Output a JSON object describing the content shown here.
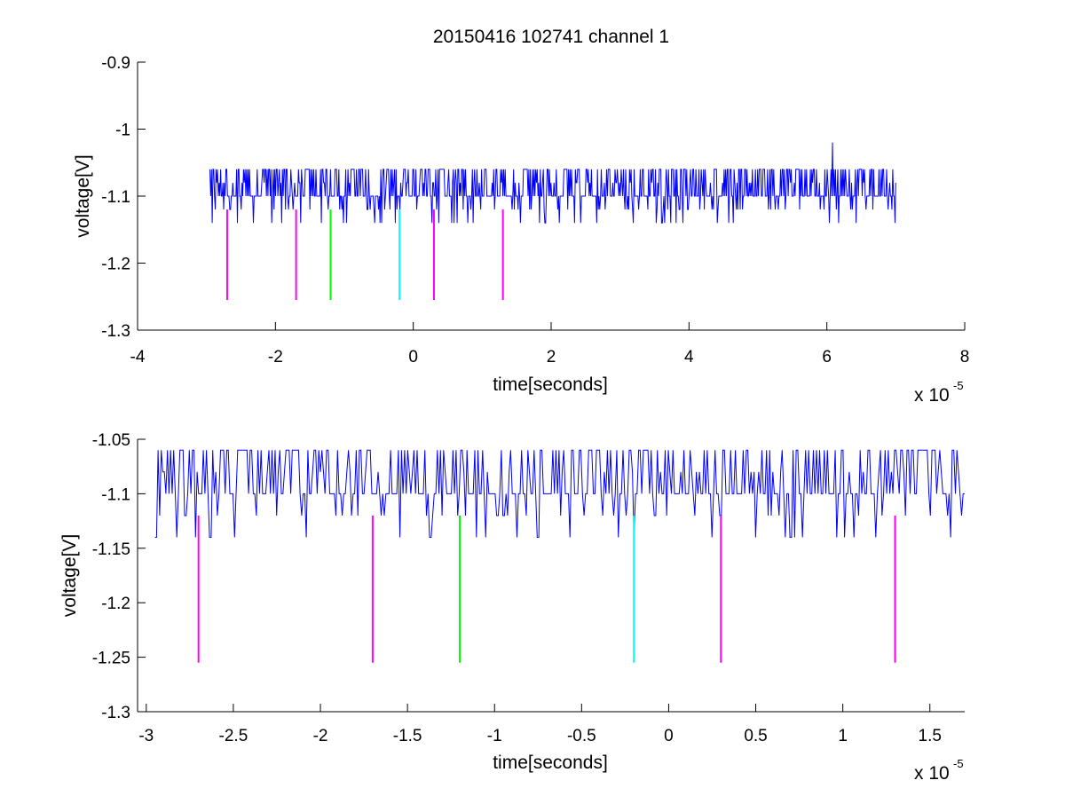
{
  "title": "20150416 102741 channel 1",
  "colors": {
    "signal": "#0000ff",
    "magenta": "#ff00ff",
    "green": "#00ff00",
    "cyan": "#00ffff",
    "axis": "#000000",
    "background": "#ffffff"
  },
  "chart_data": [
    {
      "type": "line",
      "title": "20150416 102741 channel 1",
      "xlabel": "time[seconds]",
      "ylabel": "voltage[V]",
      "x_exponent_base": "x 10",
      "x_exponent": "-5",
      "xlim": [
        -4,
        8
      ],
      "ylim": [
        -1.3,
        -0.9
      ],
      "xticks": [
        -4,
        -2,
        0,
        2,
        4,
        6,
        8
      ],
      "xtick_labels": [
        "-4",
        "-2",
        "0",
        "2",
        "4",
        "6",
        "8"
      ],
      "yticks": [
        -1.3,
        -1.2,
        -1.1,
        -1.0,
        -0.9
      ],
      "ytick_labels": [
        "-1.3",
        "-1.2",
        "-1.1",
        "-1",
        "-0.9"
      ],
      "grid": false,
      "series": [
        {
          "color": "#0000ff",
          "x_range": [
            -2.95,
            7.0
          ],
          "baseline": -1.1,
          "levels": [
            -1.14,
            -1.12,
            -1.1,
            -1.08,
            -1.06
          ],
          "spike": {
            "x": 6.08,
            "y": -1.02
          },
          "points": 900
        }
      ],
      "markers": [
        {
          "x": -2.7,
          "y": [
            -1.255,
            -1.12
          ],
          "color": "#ff00ff"
        },
        {
          "x": -1.7,
          "y": [
            -1.255,
            -1.12
          ],
          "color": "#ff00ff"
        },
        {
          "x": -1.2,
          "y": [
            -1.255,
            -1.12
          ],
          "color": "#00ff00"
        },
        {
          "x": -0.2,
          "y": [
            -1.255,
            -1.12
          ],
          "color": "#00ffff"
        },
        {
          "x": 0.3,
          "y": [
            -1.255,
            -1.12
          ],
          "color": "#ff00ff"
        },
        {
          "x": 1.3,
          "y": [
            -1.255,
            -1.12
          ],
          "color": "#ff00ff"
        }
      ]
    },
    {
      "type": "line",
      "xlabel": "time[seconds]",
      "ylabel": "voltage[V]",
      "x_exponent_base": "x 10",
      "x_exponent": "-5",
      "xlim": [
        -3.05,
        1.7
      ],
      "ylim": [
        -1.3,
        -1.05
      ],
      "xticks": [
        -3,
        -2.5,
        -2,
        -1.5,
        -1,
        -0.5,
        0,
        0.5,
        1,
        1.5
      ],
      "xtick_labels": [
        "-3",
        "-2.5",
        "-2",
        "-1.5",
        "-1",
        "-0.5",
        "0",
        "0.5",
        "1",
        "1.5"
      ],
      "yticks": [
        -1.3,
        -1.25,
        -1.2,
        -1.15,
        -1.1,
        -1.05
      ],
      "ytick_labels": [
        "-1.3",
        "-1.25",
        "-1.2",
        "-1.15",
        "-1.1",
        "-1.05"
      ],
      "grid": false,
      "series": [
        {
          "color": "#0000ff",
          "x_range": [
            -2.95,
            1.7
          ],
          "baseline": -1.1,
          "levels": [
            -1.14,
            -1.12,
            -1.1,
            -1.08,
            -1.06
          ],
          "points": 520
        }
      ],
      "markers": [
        {
          "x": -2.7,
          "y": [
            -1.255,
            -1.12
          ],
          "color": "#ff00ff"
        },
        {
          "x": -1.7,
          "y": [
            -1.255,
            -1.12
          ],
          "color": "#ff00ff"
        },
        {
          "x": -1.2,
          "y": [
            -1.255,
            -1.12
          ],
          "color": "#00ff00"
        },
        {
          "x": -0.2,
          "y": [
            -1.255,
            -1.12
          ],
          "color": "#00ffff"
        },
        {
          "x": 0.3,
          "y": [
            -1.255,
            -1.12
          ],
          "color": "#ff00ff"
        },
        {
          "x": 1.3,
          "y": [
            -1.255,
            -1.12
          ],
          "color": "#ff00ff"
        }
      ]
    }
  ]
}
